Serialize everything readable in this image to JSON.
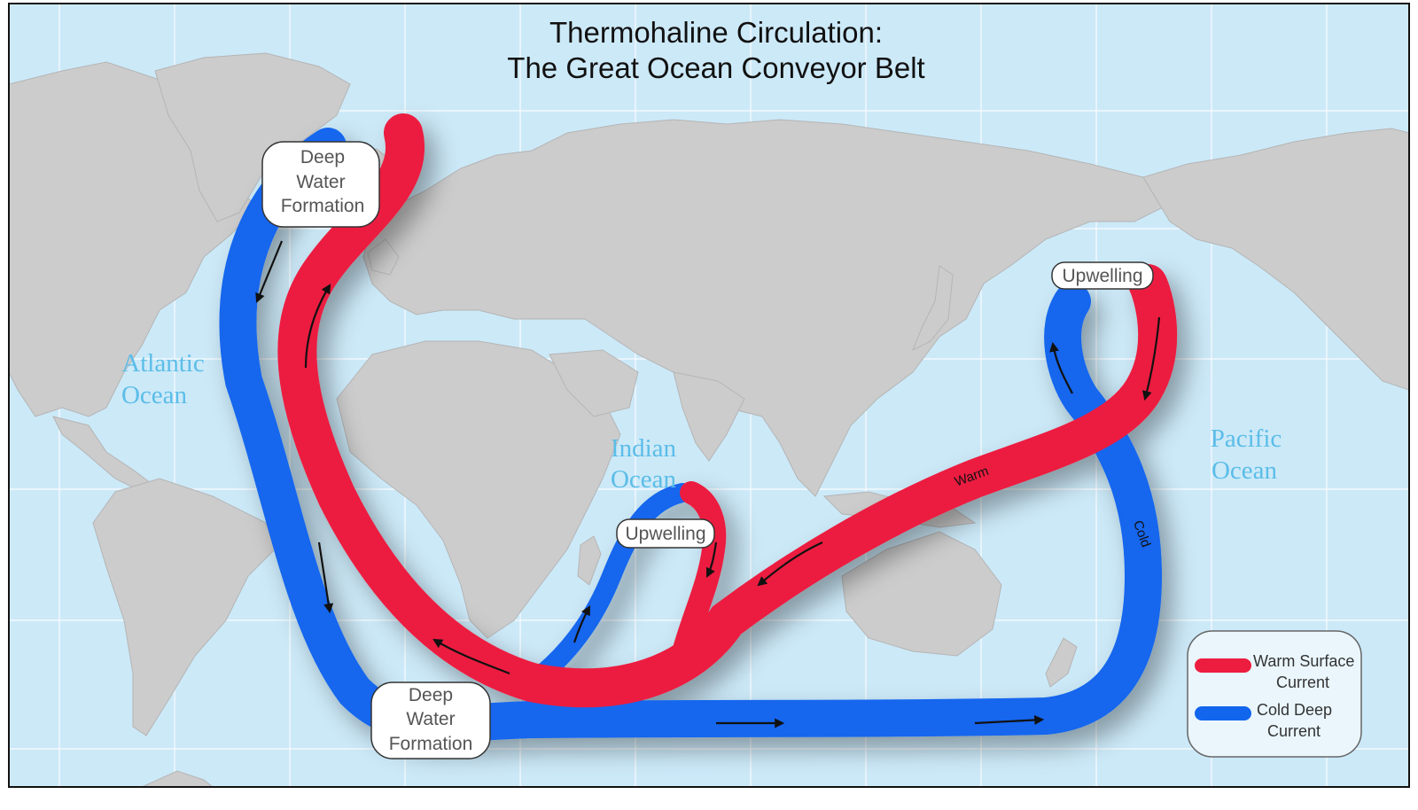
{
  "title": {
    "line1": "Thermohaline Circulation:",
    "line2": "The Great Ocean Conveyor Belt"
  },
  "oceans": {
    "atlantic": [
      "Atlantic",
      "Ocean"
    ],
    "indian": [
      "Indian",
      "Ocean"
    ],
    "pacific": [
      "Pacific",
      "Ocean"
    ]
  },
  "labels": {
    "deep_water_north": [
      "Deep",
      "Water",
      "Formation"
    ],
    "deep_water_south": [
      "Deep",
      "Water",
      "Formation"
    ],
    "upwelling_pacific": "Upwelling",
    "upwelling_indian": "Upwelling",
    "warm": "Warm",
    "cold": "Cold"
  },
  "legend": {
    "warm": [
      "Warm Surface",
      "Current"
    ],
    "cold": [
      "Cold Deep",
      "Current"
    ]
  },
  "colors": {
    "ocean": "#cce9f8",
    "land": "#cccccc",
    "warm": "#ec1d3f",
    "cold": "#1266ee",
    "ocean_label": "#5bbde8",
    "grid": "#ffffff"
  }
}
